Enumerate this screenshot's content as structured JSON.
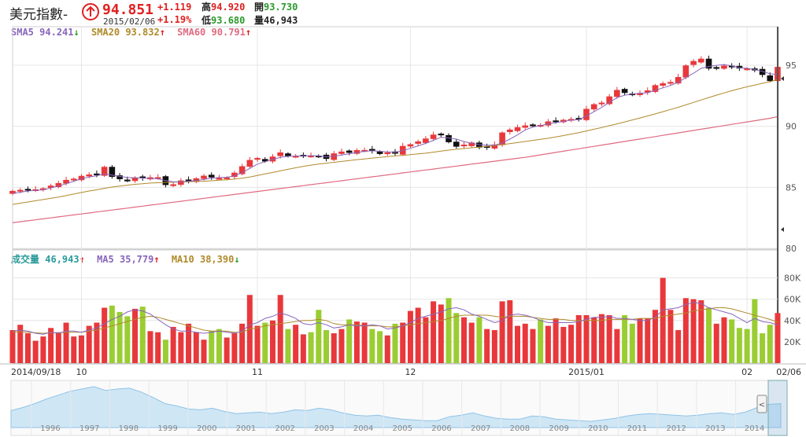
{
  "quote": {
    "name": "美元指數-",
    "price": "94.851",
    "date": "2015/02/06",
    "change": "+1.119",
    "change_pct": "+1.19%",
    "high_label": "高",
    "high": "94.920",
    "low_label": "低",
    "low": "93.680",
    "open_label": "開",
    "open": "93.730",
    "volume_label": "量",
    "volume": "46,943",
    "direction_icon": "up-arrow-circle-icon"
  },
  "ma_legend": [
    {
      "label": "SMA5",
      "value": "94.241",
      "arrow": "↓",
      "color": "#8866bb",
      "arrow_color": "#2a9a2a"
    },
    {
      "label": "SMA20",
      "value": "93.832",
      "arrow": "↑",
      "color": "#b08a2a",
      "arrow_color": "#e02020"
    },
    {
      "label": "SMA60",
      "value": "90.791",
      "arrow": "↑",
      "color": "#e06a80",
      "arrow_color": "#e02020"
    }
  ],
  "volume_legend": [
    {
      "label": "成交量",
      "value": "46,943",
      "arrow": "↑",
      "color": "#2a9a9a",
      "arrow_color": "#e02020"
    },
    {
      "label": "MA5",
      "value": "35,779",
      "arrow": "↑",
      "color": "#8866bb",
      "arrow_color": "#e02020"
    },
    {
      "label": "MA10",
      "value": "38,390",
      "arrow": "↓",
      "color": "#b08a2a",
      "arrow_color": "#2a9a2a"
    }
  ],
  "chart_data": [
    {
      "type": "candlestick",
      "ylim": [
        80,
        97
      ],
      "y_ticks": [
        {
          "value": 95,
          "label": "95"
        },
        {
          "value": 90,
          "label": "90"
        },
        {
          "value": 85,
          "label": "85"
        },
        {
          "value": 80,
          "label": "80"
        }
      ],
      "x_ticks": [
        {
          "index": 0,
          "label": "2014/09/18"
        },
        {
          "index": 9,
          "label": "10"
        },
        {
          "index": 32,
          "label": "11"
        },
        {
          "index": 52,
          "label": "12"
        },
        {
          "index": 75,
          "label": "2015/01"
        },
        {
          "index": 96,
          "label": "02"
        },
        {
          "index": 100,
          "label": "02/06"
        }
      ],
      "closes": [
        84.69,
        84.77,
        84.81,
        84.82,
        84.9,
        85.12,
        85.33,
        85.59,
        85.69,
        85.92,
        86.03,
        86.05,
        86.66,
        85.88,
        85.69,
        85.54,
        85.79,
        85.76,
        85.8,
        85.81,
        85.21,
        85.23,
        85.54,
        85.54,
        85.72,
        85.93,
        85.83,
        85.75,
        85.79,
        86.18,
        86.71,
        87.22,
        87.38,
        87.14,
        87.5,
        87.84,
        87.56,
        87.56,
        87.62,
        87.58,
        87.57,
        87.35,
        87.76,
        87.91,
        87.85,
        88.03,
        88.04,
        87.99,
        87.75,
        87.84,
        87.78,
        88.37,
        88.51,
        88.74,
        88.98,
        89.3,
        89.34,
        88.72,
        88.35,
        88.48,
        88.65,
        88.28,
        88.28,
        88.49,
        89.47,
        89.71,
        89.91,
        90.05,
        90.12,
        90.09,
        90.38,
        90.44,
        90.51,
        90.58,
        90.61,
        91.41,
        91.79,
        91.92,
        92.43,
        92.96,
        92.75,
        92.58,
        92.71,
        92.92,
        93.35,
        93.5,
        93.61,
        94.02,
        94.97,
        95.33,
        95.52,
        94.75,
        94.82,
        94.95,
        94.85,
        94.76,
        94.72,
        94.6,
        94.23,
        93.73,
        94.85
      ],
      "ma5": [
        84.5,
        84.6,
        84.7,
        84.75,
        84.8,
        84.95,
        85.1,
        85.3,
        85.5,
        85.7,
        85.85,
        85.95,
        86.1,
        86.0,
        85.9,
        85.8,
        85.78,
        85.76,
        85.74,
        85.7,
        85.55,
        85.45,
        85.45,
        85.5,
        85.55,
        85.65,
        85.75,
        85.8,
        85.82,
        85.95,
        86.2,
        86.55,
        86.9,
        87.1,
        87.3,
        87.45,
        87.55,
        87.56,
        87.58,
        87.6,
        87.58,
        87.5,
        87.55,
        87.65,
        87.75,
        87.85,
        87.95,
        88.0,
        87.95,
        87.9,
        87.88,
        88.0,
        88.2,
        88.4,
        88.6,
        88.85,
        89.1,
        89.05,
        88.95,
        88.75,
        88.6,
        88.5,
        88.45,
        88.45,
        88.65,
        88.95,
        89.3,
        89.7,
        89.95,
        90.05,
        90.2,
        90.3,
        90.4,
        90.5,
        90.55,
        90.85,
        91.2,
        91.55,
        91.95,
        92.35,
        92.55,
        92.65,
        92.7,
        92.75,
        92.95,
        93.15,
        93.35,
        93.6,
        94.0,
        94.35,
        94.75,
        94.9,
        95.0,
        95.05,
        94.95,
        94.8,
        94.75,
        94.65,
        94.5,
        94.3,
        94.24
      ],
      "ma20": [
        83.6,
        83.7,
        83.8,
        83.9,
        84.0,
        84.1,
        84.2,
        84.32,
        84.45,
        84.58,
        84.7,
        84.8,
        84.92,
        85.02,
        85.1,
        85.18,
        85.25,
        85.3,
        85.35,
        85.38,
        85.4,
        85.42,
        85.44,
        85.46,
        85.48,
        85.5,
        85.54,
        85.58,
        85.62,
        85.68,
        85.75,
        85.85,
        85.97,
        86.1,
        86.22,
        86.35,
        86.48,
        86.6,
        86.72,
        86.82,
        86.9,
        86.98,
        87.05,
        87.12,
        87.2,
        87.27,
        87.33,
        87.4,
        87.46,
        87.52,
        87.57,
        87.62,
        87.68,
        87.74,
        87.8,
        87.88,
        87.97,
        88.05,
        88.12,
        88.18,
        88.24,
        88.3,
        88.36,
        88.42,
        88.5,
        88.58,
        88.67,
        88.76,
        88.85,
        88.93,
        89.02,
        89.13,
        89.24,
        89.36,
        89.48,
        89.62,
        89.76,
        89.9,
        90.05,
        90.2,
        90.36,
        90.52,
        90.68,
        90.85,
        91.02,
        91.2,
        91.38,
        91.56,
        91.76,
        91.96,
        92.16,
        92.36,
        92.55,
        92.74,
        92.92,
        93.08,
        93.24,
        93.38,
        93.52,
        93.66,
        93.83
      ],
      "ma60": [
        82.1,
        82.18,
        82.26,
        82.34,
        82.42,
        82.5,
        82.58,
        82.66,
        82.74,
        82.82,
        82.9,
        82.98,
        83.06,
        83.14,
        83.22,
        83.3,
        83.38,
        83.46,
        83.54,
        83.62,
        83.7,
        83.78,
        83.86,
        83.94,
        84.02,
        84.1,
        84.18,
        84.26,
        84.34,
        84.42,
        84.5,
        84.58,
        84.66,
        84.74,
        84.82,
        84.9,
        84.98,
        85.06,
        85.14,
        85.22,
        85.3,
        85.38,
        85.46,
        85.54,
        85.62,
        85.7,
        85.78,
        85.86,
        85.94,
        86.02,
        86.1,
        86.18,
        86.26,
        86.34,
        86.42,
        86.5,
        86.58,
        86.66,
        86.74,
        86.82,
        86.9,
        86.98,
        87.06,
        87.14,
        87.22,
        87.3,
        87.38,
        87.46,
        87.56,
        87.66,
        87.76,
        87.86,
        87.96,
        88.06,
        88.16,
        88.26,
        88.36,
        88.46,
        88.56,
        88.66,
        88.76,
        88.86,
        88.96,
        89.06,
        89.16,
        89.26,
        89.36,
        89.46,
        89.56,
        89.66,
        89.76,
        89.86,
        89.96,
        90.06,
        90.16,
        90.26,
        90.36,
        90.46,
        90.56,
        90.66,
        90.79
      ]
    },
    {
      "type": "bar",
      "ylim": [
        0,
        90000
      ],
      "y_ticks": [
        {
          "value": 80000,
          "label": "80K"
        },
        {
          "value": 60000,
          "label": "60K"
        },
        {
          "value": 40000,
          "label": "40K"
        },
        {
          "value": 20000,
          "label": "20K"
        }
      ],
      "volumes": [
        31000,
        36000,
        28000,
        21000,
        25000,
        33000,
        29000,
        38000,
        25000,
        26000,
        35000,
        38000,
        52000,
        54000,
        48000,
        44000,
        51000,
        53000,
        30000,
        29000,
        22000,
        34000,
        29000,
        37000,
        29000,
        22000,
        30000,
        32000,
        24000,
        28000,
        37000,
        64000,
        35000,
        38000,
        40000,
        64000,
        32000,
        36000,
        27000,
        29000,
        50000,
        31000,
        28000,
        32000,
        41000,
        39000,
        38000,
        32000,
        30000,
        26000,
        37000,
        38000,
        49000,
        52000,
        43000,
        58000,
        55000,
        61000,
        47000,
        43000,
        38000,
        43000,
        32000,
        31000,
        58000,
        59000,
        35000,
        37000,
        32000,
        41000,
        35000,
        42000,
        34000,
        36000,
        45000,
        45000,
        43000,
        46000,
        45000,
        32000,
        45000,
        37000,
        42000,
        42000,
        50000,
        80000,
        50000,
        31000,
        61000,
        60000,
        59000,
        52000,
        37000,
        43000,
        41000,
        33000,
        32000,
        60000,
        28000,
        36000,
        47000
      ],
      "vol_ma5": [
        30000,
        31000,
        30000,
        28000,
        27000,
        29000,
        28000,
        30000,
        30000,
        29000,
        31000,
        33000,
        37000,
        41000,
        44000,
        48000,
        50000,
        49000,
        46000,
        41000,
        36000,
        32000,
        30000,
        30000,
        29000,
        28000,
        29000,
        30000,
        29000,
        28000,
        30000,
        36000,
        38000,
        42000,
        44000,
        47000,
        45000,
        42000,
        37000,
        36000,
        38000,
        36000,
        33000,
        34000,
        36000,
        35000,
        35000,
        36000,
        35000,
        32000,
        33000,
        35000,
        38000,
        42000,
        44000,
        46000,
        48000,
        51000,
        52000,
        50000,
        46000,
        44000,
        41000,
        38000,
        40000,
        45000,
        46000,
        45000,
        43000,
        40000,
        38000,
        38000,
        38000,
        38000,
        39000,
        41000,
        43000,
        43000,
        44000,
        42000,
        42000,
        41000,
        40000,
        40000,
        43000,
        50000,
        51000,
        52000,
        55000,
        57000,
        56000,
        52000,
        50000,
        48000,
        46000,
        42000,
        38000,
        42000,
        39000,
        38000,
        35779
      ],
      "vol_ma10": [
        29000,
        29500,
        29000,
        28500,
        28000,
        28500,
        28500,
        29000,
        29000,
        29000,
        30000,
        31000,
        33000,
        35000,
        37000,
        39000,
        41000,
        43000,
        44000,
        43000,
        41000,
        39000,
        37000,
        35000,
        33000,
        31000,
        30000,
        30000,
        30000,
        29000,
        29000,
        32000,
        33000,
        35000,
        36000,
        37000,
        38000,
        39000,
        40000,
        40000,
        41000,
        40000,
        37000,
        36000,
        36000,
        36000,
        35000,
        35000,
        35000,
        34000,
        34000,
        35000,
        36000,
        37000,
        38000,
        39000,
        40000,
        42000,
        44000,
        45000,
        45000,
        45000,
        45000,
        44000,
        43000,
        44000,
        44000,
        44000,
        43000,
        42000,
        41000,
        41000,
        41000,
        40000,
        40000,
        40000,
        40000,
        40000,
        41000,
        41000,
        41000,
        41000,
        42000,
        42000,
        42000,
        44000,
        45000,
        46000,
        47000,
        49000,
        50000,
        51000,
        52000,
        52000,
        51000,
        49000,
        47000,
        45000,
        43000,
        41000,
        38390
      ]
    },
    {
      "type": "area",
      "x_labels": [
        "1996",
        "1997",
        "1998",
        "1999",
        "2000",
        "2001",
        "2002",
        "2003",
        "2004",
        "2005",
        "2006",
        "2007",
        "2008",
        "2009",
        "2010",
        "2011",
        "2012",
        "2013",
        "2014"
      ],
      "values": [
        86,
        90,
        95,
        101,
        106,
        111,
        114,
        117,
        112,
        114,
        115,
        110,
        103,
        95,
        92,
        88,
        87,
        89,
        85,
        82,
        83,
        84,
        82,
        84,
        87,
        86,
        89,
        87,
        83,
        80,
        79,
        80,
        77,
        75,
        74,
        73,
        73,
        78,
        80,
        83,
        79,
        76,
        75,
        75,
        79,
        78,
        75,
        74,
        73,
        72,
        74,
        76,
        79,
        81,
        82,
        81,
        80,
        79,
        80,
        82,
        83,
        81,
        84,
        90,
        94,
        95
      ]
    }
  ]
}
